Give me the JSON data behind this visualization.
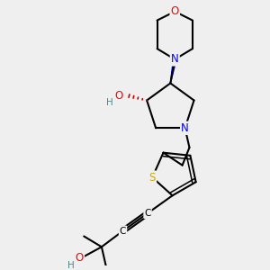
{
  "bg_color": "#efefef",
  "bond_color": "#000000",
  "bond_lw": 1.5,
  "colors": {
    "O": "#ff0000",
    "N": "#0000ff",
    "S": "#ccaa00",
    "C": "#000000",
    "H": "#4a8a8a"
  },
  "font_size": 8.5,
  "font_size_small": 7.5
}
